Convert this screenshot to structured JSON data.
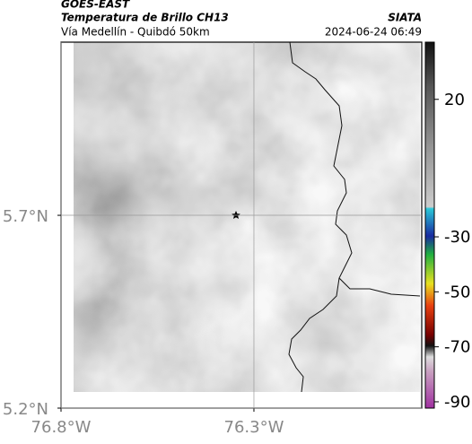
{
  "header": {
    "product": "GOES-EAST",
    "title": "Temperatura de Brillo CH13",
    "subtitle": "Vía Medellín - Quibdó 50km",
    "source": "SIATA",
    "timestamp": "2024-06-24 06:49"
  },
  "map": {
    "xlim": [
      -76.8,
      -75.865
    ],
    "ylim": [
      5.2,
      6.149
    ],
    "xticks": [
      {
        "value": -76.8,
        "label": "76.8°W"
      },
      {
        "value": -76.3,
        "label": "76.3°W"
      }
    ],
    "yticks": [
      {
        "value": 5.7,
        "label": "5.7°N"
      },
      {
        "value": 5.2,
        "label": "5.2°N"
      }
    ],
    "grid": true
  },
  "colorbar": {
    "lim": [
      -92.3,
      40.8
    ],
    "ticks": [
      20,
      -30,
      -50,
      -70,
      -90
    ]
  }
}
